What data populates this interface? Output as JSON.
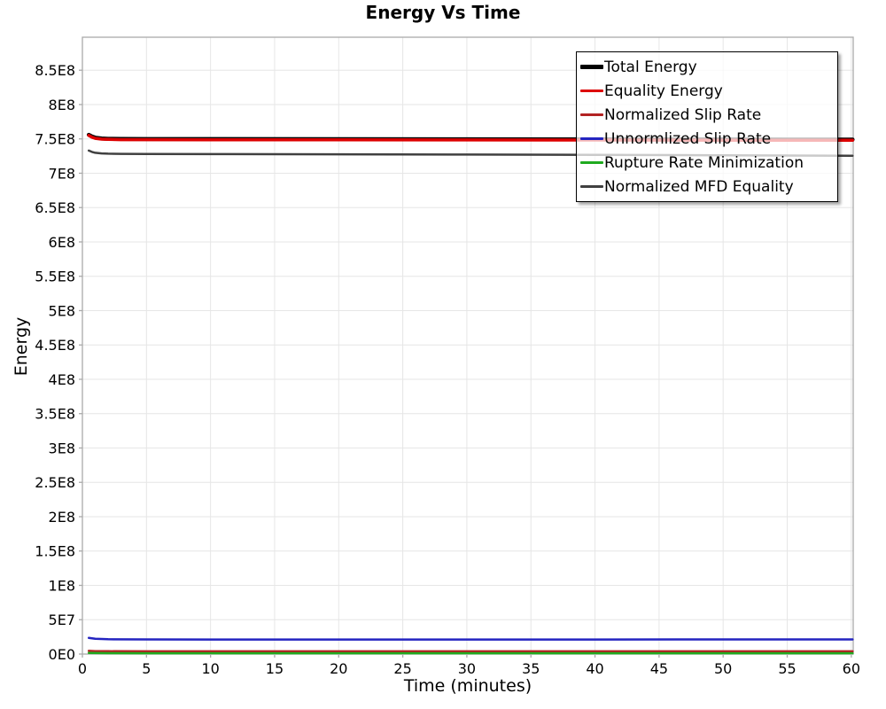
{
  "title": "Energy Vs Time",
  "chart_data": {
    "type": "line",
    "title": "Energy Vs Time",
    "xlabel": "Time (minutes)",
    "ylabel": "Energy",
    "xlim": [
      0,
      60.15
    ],
    "ylim": [
      0,
      898000000
    ],
    "grid": true,
    "grid_color": "#e6e6e6",
    "frame_color": "#aaaaaa",
    "legend_position": "top-right",
    "x_ticks": [
      {
        "value": 0,
        "label": "0"
      },
      {
        "value": 5,
        "label": "5"
      },
      {
        "value": 10,
        "label": "10"
      },
      {
        "value": 15,
        "label": "15"
      },
      {
        "value": 20,
        "label": "20"
      },
      {
        "value": 25,
        "label": "25"
      },
      {
        "value": 30,
        "label": "30"
      },
      {
        "value": 35,
        "label": "35"
      },
      {
        "value": 40,
        "label": "40"
      },
      {
        "value": 45,
        "label": "45"
      },
      {
        "value": 50,
        "label": "50"
      },
      {
        "value": 55,
        "label": "55"
      },
      {
        "value": 60,
        "label": "60"
      }
    ],
    "y_ticks": [
      {
        "value": 0,
        "label": "0E0"
      },
      {
        "value": 50000000,
        "label": "5E7"
      },
      {
        "value": 100000000,
        "label": "1E8"
      },
      {
        "value": 150000000,
        "label": "1.5E8"
      },
      {
        "value": 200000000,
        "label": "2E8"
      },
      {
        "value": 250000000,
        "label": "2.5E8"
      },
      {
        "value": 300000000,
        "label": "3E8"
      },
      {
        "value": 350000000,
        "label": "3.5E8"
      },
      {
        "value": 400000000,
        "label": "4E8"
      },
      {
        "value": 450000000,
        "label": "4.5E8"
      },
      {
        "value": 500000000,
        "label": "5E8"
      },
      {
        "value": 550000000,
        "label": "5.5E8"
      },
      {
        "value": 600000000,
        "label": "6E8"
      },
      {
        "value": 650000000,
        "label": "6.5E8"
      },
      {
        "value": 700000000,
        "label": "7E8"
      },
      {
        "value": 750000000,
        "label": "7.5E8"
      },
      {
        "value": 800000000,
        "label": "8E8"
      },
      {
        "value": 850000000,
        "label": "8.5E8"
      }
    ],
    "series": [
      {
        "name": "Total Energy",
        "color": "#000000",
        "line_width": 4.5,
        "points": [
          [
            0.5,
            756000000
          ],
          [
            0.75,
            753500000
          ],
          [
            1,
            751800000
          ],
          [
            1.5,
            750600000
          ],
          [
            2,
            750200000
          ],
          [
            3,
            749900000
          ],
          [
            5,
            749800000
          ],
          [
            10,
            749700000
          ],
          [
            20,
            749600000
          ],
          [
            30,
            749500000
          ],
          [
            40,
            749300000
          ],
          [
            50,
            749100000
          ],
          [
            60.1,
            749000000
          ]
        ]
      },
      {
        "name": "Equality Energy",
        "color": "#dd0000",
        "line_width": 3.5,
        "points": [
          [
            0.5,
            755000000
          ],
          [
            0.75,
            752500000
          ],
          [
            1,
            750800000
          ],
          [
            1.5,
            749600000
          ],
          [
            2,
            749200000
          ],
          [
            3,
            748900000
          ],
          [
            5,
            748800000
          ],
          [
            10,
            748700000
          ],
          [
            20,
            748600000
          ],
          [
            30,
            748500000
          ],
          [
            40,
            748300000
          ],
          [
            50,
            748100000
          ],
          [
            60.1,
            748000000
          ]
        ]
      },
      {
        "name": "Normalized Slip Rate",
        "color": "#b22222",
        "line_width": 2.5,
        "points": [
          [
            0.5,
            4600000
          ],
          [
            1,
            4300000
          ],
          [
            2,
            4100000
          ],
          [
            5,
            4000000
          ],
          [
            10,
            4000000
          ],
          [
            20,
            4000000
          ],
          [
            30,
            4000000
          ],
          [
            40,
            4000000
          ],
          [
            50,
            4000000
          ],
          [
            60.1,
            4000000
          ]
        ]
      },
      {
        "name": "Unnormlized Slip Rate",
        "color": "#2424c0",
        "line_width": 2.5,
        "points": [
          [
            0.5,
            23500000
          ],
          [
            1,
            22200000
          ],
          [
            2,
            21500000
          ],
          [
            5,
            21300000
          ],
          [
            10,
            21200000
          ],
          [
            20,
            21200000
          ],
          [
            30,
            21200000
          ],
          [
            40,
            21200000
          ],
          [
            50,
            21300000
          ],
          [
            60.1,
            21300000
          ]
        ]
      },
      {
        "name": "Rupture Rate Minimization",
        "color": "#1faa1f",
        "line_width": 2.5,
        "points": [
          [
            0.5,
            1600000
          ],
          [
            2,
            1300000
          ],
          [
            5,
            1200000
          ],
          [
            20,
            1200000
          ],
          [
            40,
            1200000
          ],
          [
            60.1,
            1200000
          ]
        ]
      },
      {
        "name": "Normalized MFD Equality",
        "color": "#404040",
        "line_width": 2.5,
        "points": [
          [
            0.5,
            733000000
          ],
          [
            0.75,
            731000000
          ],
          [
            1,
            729800000
          ],
          [
            1.5,
            728900000
          ],
          [
            2,
            728500000
          ],
          [
            3,
            728200000
          ],
          [
            5,
            728000000
          ],
          [
            10,
            727800000
          ],
          [
            20,
            727500000
          ],
          [
            30,
            727200000
          ],
          [
            40,
            726800000
          ],
          [
            50,
            726200000
          ],
          [
            60.1,
            725500000
          ]
        ]
      }
    ]
  }
}
